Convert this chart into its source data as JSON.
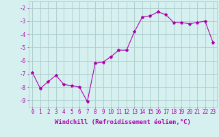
{
  "x": [
    0,
    1,
    2,
    3,
    4,
    5,
    6,
    7,
    8,
    9,
    10,
    11,
    12,
    13,
    14,
    15,
    16,
    17,
    18,
    19,
    20,
    21,
    22,
    23
  ],
  "y": [
    -6.9,
    -8.1,
    -7.6,
    -7.1,
    -7.8,
    -7.9,
    -8.0,
    -9.1,
    -6.2,
    -6.1,
    -5.7,
    -5.2,
    -5.2,
    -3.8,
    -2.7,
    -2.6,
    -2.3,
    -2.5,
    -3.1,
    -3.1,
    -3.2,
    -3.1,
    -3.0,
    -4.6
  ],
  "xlabel": "Windchill (Refroidissement éolien,°C)",
  "ylim": [
    -9.5,
    -1.5
  ],
  "xlim": [
    -0.5,
    23.5
  ],
  "yticks": [
    -9,
    -8,
    -7,
    -6,
    -5,
    -4,
    -3,
    -2
  ],
  "xticks": [
    0,
    1,
    2,
    3,
    4,
    5,
    6,
    7,
    8,
    9,
    10,
    11,
    12,
    13,
    14,
    15,
    16,
    17,
    18,
    19,
    20,
    21,
    22,
    23
  ],
  "line_color": "#aa00aa",
  "marker": "*",
  "bg_color": "#d6f0f0",
  "grid_color": "#aacccc",
  "tick_color": "#aa00aa",
  "label_color": "#aa00aa",
  "font_size": 5.5,
  "xlabel_font_size": 6.5
}
